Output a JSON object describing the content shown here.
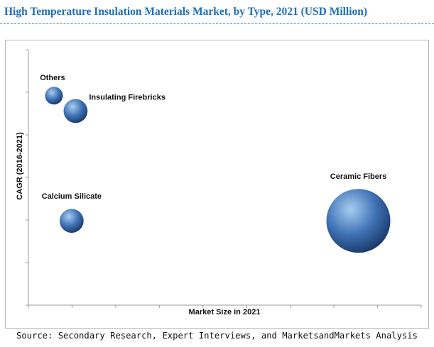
{
  "chart_data": {
    "type": "scatter",
    "title": "High Temperature Insulation Materials Market, by Type, 2021 (USD Million)",
    "xlabel": "Market Size in 2021",
    "ylabel": "CAGR (2016-2021)",
    "grid": false,
    "legend": "none",
    "points": [
      {
        "label": "Others",
        "x": 0.065,
        "y": 0.82,
        "size": 1
      },
      {
        "label": "Insulating Firebricks",
        "x": 0.12,
        "y": 0.76,
        "size": 1.35
      },
      {
        "label": "Calcium Silicate",
        "x": 0.11,
        "y": 0.33,
        "size": 1.35
      },
      {
        "label": "Ceramic Fibers",
        "x": 0.84,
        "y": 0.33,
        "size": 3.6
      }
    ],
    "colors": {
      "bubble": "#3f72b5",
      "bubble_light": "#a9cdf2",
      "bubble_dark": "#1a3766"
    }
  },
  "source": "Source: Secondary Research, Expert Interviews, and MarketsandMarkets Analysis"
}
